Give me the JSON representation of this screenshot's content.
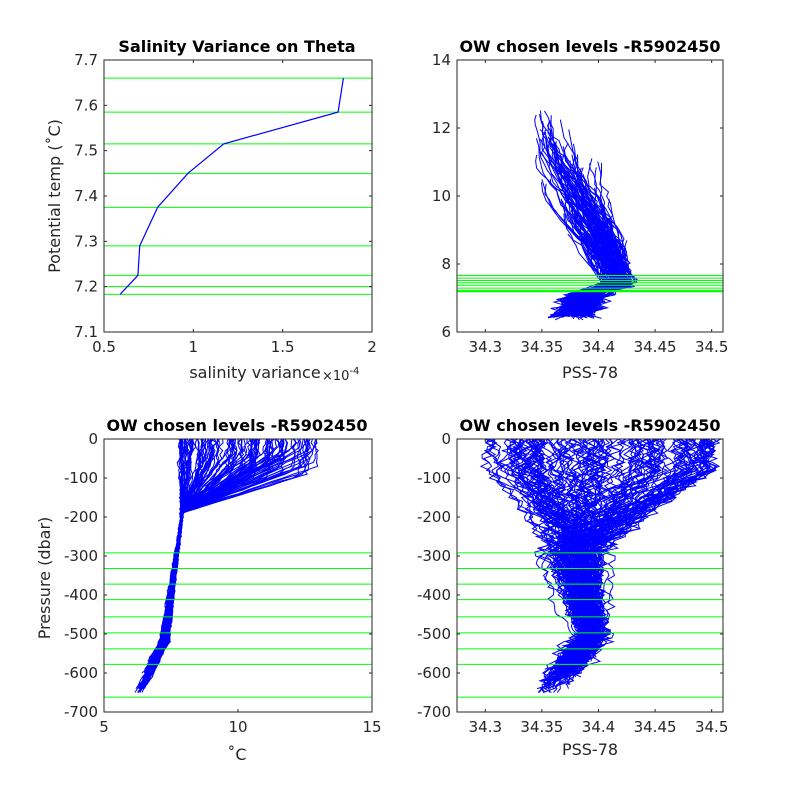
{
  "chart_data": [
    {
      "id": "p1",
      "type": "line",
      "title": "Salinity Variance on Theta",
      "xlabel": "salinity variance",
      "ylabel": "Potential temp (˚C)",
      "xlim": [
        0.5,
        2.0
      ],
      "ylim": [
        7.1,
        7.7
      ],
      "xticks": [
        0.5,
        1,
        1.5,
        2
      ],
      "xtick_labels": [
        "0.5",
        "1",
        "1.5",
        "2"
      ],
      "yticks": [
        7.1,
        7.2,
        7.3,
        7.4,
        7.5,
        7.6,
        7.7
      ],
      "ytick_labels": [
        "7.1",
        "7.2",
        "7.3",
        "7.4",
        "7.5",
        "7.6",
        "7.7"
      ],
      "x_exponent": "×10",
      "x_exponent_power": "-4",
      "series": [
        {
          "color": "#0000ff",
          "x": [
            0.59,
            0.69,
            0.7,
            0.8,
            0.97,
            1.17,
            1.81,
            1.84
          ],
          "y": [
            7.183,
            7.225,
            7.29,
            7.375,
            7.45,
            7.515,
            7.585,
            7.66
          ]
        }
      ],
      "hlines": {
        "color": "#00ff00",
        "values": [
          7.183,
          7.2,
          7.225,
          7.29,
          7.375,
          7.45,
          7.515,
          7.585,
          7.66
        ]
      }
    },
    {
      "id": "p2",
      "type": "line",
      "title": "OW chosen levels -R5902450",
      "xlabel": "PSS-78",
      "ylabel": "",
      "xlim": [
        34.275,
        34.51
      ],
      "ylim": [
        6,
        14
      ],
      "xticks": [
        34.3,
        34.35,
        34.4,
        34.45,
        34.5
      ],
      "xtick_labels": [
        "34.3",
        "34.35",
        "34.4",
        "34.45",
        "34.5"
      ],
      "yticks": [
        6,
        8,
        10,
        12,
        14
      ],
      "ytick_labels": [
        "6",
        "8",
        "10",
        "12",
        "14"
      ],
      "series_color": "#0000ff",
      "profiles_note_count": 160,
      "hlines": {
        "color": "#00ff00",
        "values": [
          7.183,
          7.2,
          7.225,
          7.29,
          7.375,
          7.45,
          7.515,
          7.585,
          7.66
        ]
      }
    },
    {
      "id": "p3",
      "type": "line",
      "title": "OW chosen levels -R5902450",
      "xlabel": "˚C",
      "ylabel": "Pressure (dbar)",
      "xlim": [
        5,
        15
      ],
      "ylim": [
        -700,
        0
      ],
      "xticks": [
        5,
        10,
        15
      ],
      "xtick_labels": [
        "5",
        "10",
        "15"
      ],
      "yticks": [
        -700,
        -600,
        -500,
        -400,
        -300,
        -200,
        -100,
        0
      ],
      "ytick_labels": [
        "-700",
        "-600",
        "-500",
        "-400",
        "-300",
        "-200",
        "-100",
        "0"
      ],
      "series_color": "#0000ff",
      "hlines": {
        "color": "#00ff00",
        "values": [
          -292,
          -332,
          -372,
          -412,
          -456,
          -497,
          -538,
          -578,
          -662
        ]
      }
    },
    {
      "id": "p4",
      "type": "line",
      "title": "OW chosen levels -R5902450",
      "xlabel": "PSS-78",
      "ylabel": "",
      "xlim": [
        34.275,
        34.51
      ],
      "ylim": [
        -700,
        0
      ],
      "xticks": [
        34.3,
        34.35,
        34.4,
        34.45,
        34.5
      ],
      "xtick_labels": [
        "34.3",
        "34.35",
        "34.4",
        "34.45",
        "34.5"
      ],
      "yticks": [
        -700,
        -600,
        -500,
        -400,
        -300,
        -200,
        -100,
        0
      ],
      "ytick_labels": [
        "-700",
        "-600",
        "-500",
        "-400",
        "-300",
        "-200",
        "-100",
        "0"
      ],
      "series_color": "#0000ff",
      "hlines": {
        "color": "#00ff00",
        "values": [
          -292,
          -332,
          -372,
          -412,
          -456,
          -497,
          -538,
          -578,
          -662
        ]
      }
    }
  ]
}
